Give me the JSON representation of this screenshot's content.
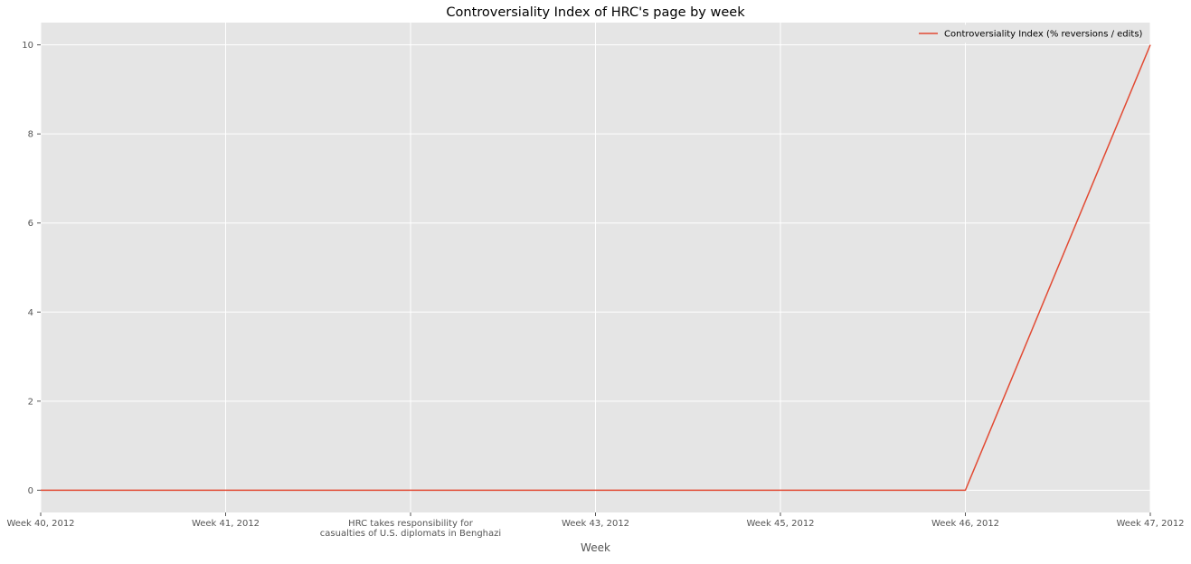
{
  "chart_data": {
    "type": "line",
    "title": "Controversiality Index of HRC's page by week",
    "xlabel": "Week",
    "ylabel": "",
    "x_tick_labels": [
      [
        "Week 40, 2012"
      ],
      [
        "Week 41, 2012"
      ],
      [
        "HRC takes responsibility for",
        "casualties of U.S. diplomats in Benghazi"
      ],
      [
        "Week 43, 2012"
      ],
      [
        "Week 45, 2012"
      ],
      [
        "Week 46, 2012"
      ],
      [
        "Week 47, 2012"
      ]
    ],
    "y_ticks": [
      0,
      2,
      4,
      6,
      8,
      10
    ],
    "ylim": [
      -0.5,
      10.5
    ],
    "grid": true,
    "legend_position": "top-right",
    "series": [
      {
        "name": "Controversiality Index (% reversions / edits)",
        "color": "#E24A33",
        "values": [
          0,
          0,
          0,
          0,
          0,
          0,
          10
        ]
      }
    ],
    "background_color": "#E5E5E5",
    "grid_color": "#FFFFFF"
  }
}
